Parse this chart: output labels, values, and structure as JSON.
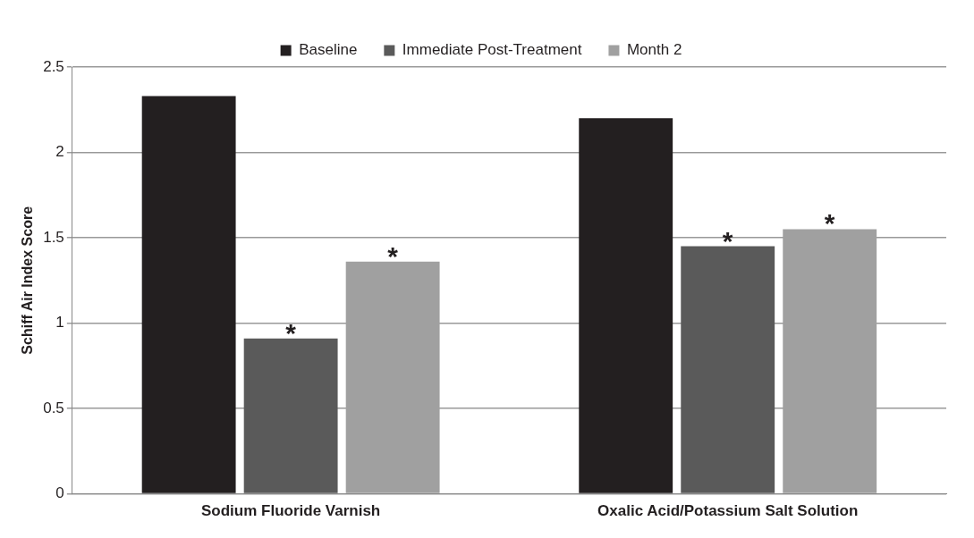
{
  "chart_data": {
    "type": "bar",
    "ylabel": "Schiff Air Index Score",
    "categories": [
      "Sodium Fluoride Varnish",
      "Oxalic Acid/Potassium Salt Solution"
    ],
    "series": [
      {
        "name": "Baseline",
        "color": "#231f20",
        "values": [
          2.33,
          2.2
        ]
      },
      {
        "name": "Immediate Post-Treatment",
        "color": "#5a5a5a",
        "values": [
          0.91,
          1.45
        ]
      },
      {
        "name": "Month 2",
        "color": "#a0a0a0",
        "values": [
          1.36,
          1.55
        ]
      }
    ],
    "ylim": [
      0,
      2.5
    ],
    "yticks": [
      0,
      0.5,
      1,
      1.5,
      2,
      2.5
    ],
    "grid": "y",
    "legend": "top",
    "annotations": [
      "*",
      "*",
      "*",
      "*"
    ]
  }
}
